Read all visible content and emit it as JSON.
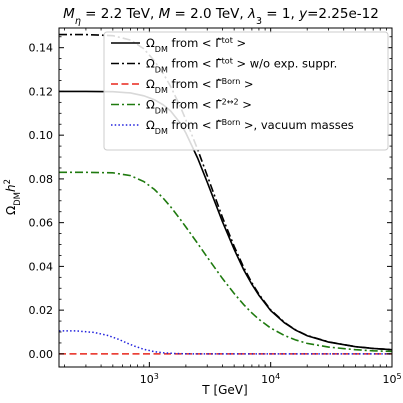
{
  "chart_data": {
    "type": "line",
    "title": "M_η = 2.2 TeV, M = 2.0 TeV, λ_3 = 1, y=2.25e-12",
    "title_parts": {
      "a": "M",
      "a_sub": "η",
      "b": " = 2.2 TeV, ",
      "c": "M",
      "d": " = 2.0 TeV, ",
      "e": "λ",
      "e_sub": "3",
      "f": " = 1, ",
      "g": "y",
      "h": "=2.25e-12"
    },
    "xlabel": "T [GeV]",
    "ylabel": "Ω_DM h²",
    "ylabel_parts": {
      "omega": "Ω",
      "sub": "DM",
      "h": "h",
      "sup": "2"
    },
    "x_scale": "log",
    "xlim": [
      180,
      100000
    ],
    "ylim": [
      -0.006,
      0.149
    ],
    "x_ticks": [
      {
        "value": 1000,
        "base": "10",
        "exp": "3"
      },
      {
        "value": 10000,
        "base": "10",
        "exp": "4"
      },
      {
        "value": 100000,
        "base": "10",
        "exp": "5"
      }
    ],
    "y_ticks": [
      {
        "value": 0.0,
        "label": "0.00"
      },
      {
        "value": 0.02,
        "label": "0.02"
      },
      {
        "value": 0.04,
        "label": "0.04"
      },
      {
        "value": 0.06,
        "label": "0.06"
      },
      {
        "value": 0.08,
        "label": "0.08"
      },
      {
        "value": 0.1,
        "label": "0.10"
      },
      {
        "value": 0.12,
        "label": "0.12"
      },
      {
        "value": 0.14,
        "label": "0.14"
      }
    ],
    "legend_position": "top-right",
    "series": [
      {
        "key": "tot",
        "legend": {
          "a": "Ω",
          "a_sub": "DM",
          "b": " from < ",
          "c": "Γ̂",
          "c_sup": "tot",
          "d": " >"
        },
        "color": "#000000",
        "style": "solid",
        "x": [
          180,
          300,
          500,
          700,
          900,
          1100,
          1300,
          1500,
          1800,
          2000,
          2500,
          3000,
          4000,
          5000,
          6000,
          7000,
          8000,
          10000,
          13000,
          16000,
          20000,
          30000,
          50000,
          70000,
          100000
        ],
        "y": [
          0.12,
          0.12,
          0.1199,
          0.1193,
          0.118,
          0.1162,
          0.1139,
          0.111,
          0.1055,
          0.101,
          0.0895,
          0.0785,
          0.0605,
          0.0478,
          0.0384,
          0.0318,
          0.0268,
          0.0198,
          0.0142,
          0.0109,
          0.0083,
          0.0054,
          0.0033,
          0.0025,
          0.0019
        ]
      },
      {
        "key": "tot_noexp",
        "legend": {
          "a": "Ω",
          "a_sub": "DM",
          "b": " from < ",
          "c": "Γ̂",
          "c_sup": "tot",
          "d": " >  w/o exp. suppr."
        },
        "color": "#000000",
        "style": "dashdot",
        "x": [
          180,
          300,
          500,
          700,
          900,
          1100,
          1300,
          1500,
          1800,
          2000,
          2500,
          3000,
          4000,
          5000,
          6000,
          7000,
          8000,
          10000,
          13000,
          16000,
          20000,
          30000,
          50000,
          70000,
          100000
        ],
        "y": [
          0.146,
          0.146,
          0.1455,
          0.1435,
          0.1395,
          0.134,
          0.1282,
          0.1222,
          0.113,
          0.107,
          0.0935,
          0.0815,
          0.0625,
          0.0492,
          0.0395,
          0.0325,
          0.0273,
          0.0201,
          0.0144,
          0.011,
          0.0084,
          0.0055,
          0.0033,
          0.0025,
          0.0019
        ]
      },
      {
        "key": "born",
        "legend": {
          "a": "Ω",
          "a_sub": "DM",
          "b": " from < ",
          "c": "Γ̂",
          "c_sup": "Born",
          "d": " >"
        },
        "color": "#e8261b",
        "style": "dashed",
        "x": [
          180,
          100000
        ],
        "y": [
          0.0,
          0.0
        ]
      },
      {
        "key": "two_to_two",
        "legend": {
          "a": "Ω",
          "a_sub": "DM",
          "b": " from < ",
          "c": "Γ̂",
          "c_sup": "2↔2",
          "d": " >"
        },
        "color": "#1f7a0f",
        "style": "dashdot",
        "x": [
          180,
          300,
          500,
          700,
          900,
          1100,
          1300,
          1500,
          1800,
          2000,
          2500,
          3000,
          4000,
          5000,
          6000,
          7000,
          8000,
          10000,
          13000,
          16000,
          20000,
          30000,
          50000,
          70000,
          100000
        ],
        "y": [
          0.083,
          0.083,
          0.0828,
          0.0815,
          0.0788,
          0.0752,
          0.0712,
          0.0672,
          0.0615,
          0.058,
          0.0505,
          0.0442,
          0.0345,
          0.0276,
          0.0225,
          0.0187,
          0.0158,
          0.0118,
          0.0084,
          0.0064,
          0.0048,
          0.0031,
          0.0019,
          0.0014,
          0.0011
        ]
      },
      {
        "key": "born_vacuum",
        "legend": {
          "a": "Ω",
          "a_sub": "DM",
          "b": " from < ",
          "c": "Γ̂",
          "c_sup": "Born",
          "d": " >, vacuum masses"
        },
        "color": "#2020dd",
        "style": "dotted",
        "x": [
          180,
          250,
          350,
          450,
          550,
          650,
          750,
          900,
          1100,
          1300,
          1600,
          2000,
          2500,
          3000,
          5000,
          100000
        ],
        "y": [
          0.0105,
          0.0105,
          0.0098,
          0.0085,
          0.0068,
          0.005,
          0.0036,
          0.0021,
          0.001,
          0.0005,
          0.0002,
          5e-05,
          0.0,
          0.0,
          0.0,
          0.0
        ]
      }
    ]
  }
}
